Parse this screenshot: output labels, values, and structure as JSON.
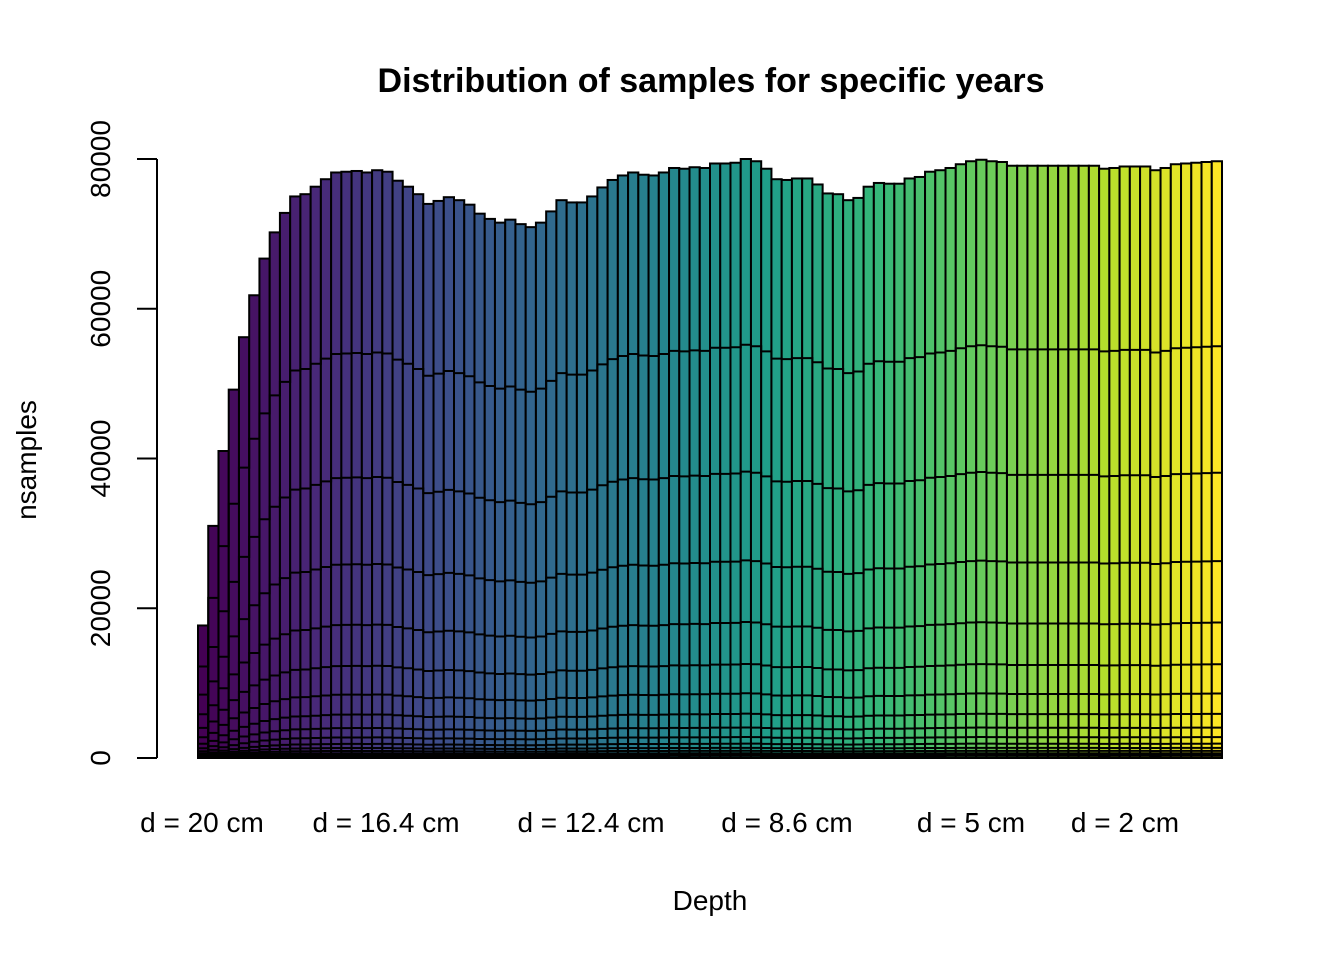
{
  "chart_data": {
    "type": "bar",
    "stacked": true,
    "title": "Distribution of samples for specific years",
    "xlabel": "Depth",
    "ylabel": "nsamples",
    "ylim": [
      0,
      80000
    ],
    "y_ticks": [
      "0",
      "20000",
      "40000",
      "60000",
      "80000"
    ],
    "x_tick_labels": [
      "d = 20 cm",
      "d = 16.4 cm",
      "d = 12.4 cm",
      "d = 8.6 cm",
      "d = 5 cm",
      "d = 2 cm"
    ],
    "n_bars": 100,
    "color_scale": "viridis",
    "totals": [
      17700,
      31000,
      41000,
      49200,
      56200,
      61800,
      66700,
      70200,
      72800,
      75000,
      75300,
      76300,
      77300,
      78200,
      78300,
      78400,
      78200,
      78500,
      78300,
      77100,
      76300,
      75300,
      74000,
      74400,
      74900,
      74500,
      73900,
      72700,
      72000,
      71500,
      71900,
      71300,
      70900,
      71500,
      73000,
      74500,
      74200,
      74200,
      75000,
      76200,
      77200,
      77800,
      78200,
      77900,
      77800,
      78200,
      78800,
      78700,
      78900,
      78800,
      79400,
      79400,
      79500,
      80000,
      79700,
      78700,
      77300,
      77200,
      77400,
      77400,
      76600,
      75400,
      75300,
      74500,
      74800,
      76300,
      76800,
      76700,
      76700,
      77400,
      77600,
      78300,
      78500,
      78800,
      79300,
      79700,
      79900,
      79700,
      79600,
      79100,
      79100,
      79100,
      79100,
      79100,
      79100,
      79100,
      79100,
      79100,
      78700,
      78800,
      79000,
      79000,
      79000,
      78500,
      78800,
      79300,
      79400,
      79500,
      79600,
      79700
    ],
    "layer_fractions": [
      0.69,
      0.478,
      0.33,
      0.227,
      0.157,
      0.108,
      0.074,
      0.051,
      0.035,
      0.024,
      0.017,
      0.012,
      0.008,
      0.0055,
      0.0035
    ]
  }
}
